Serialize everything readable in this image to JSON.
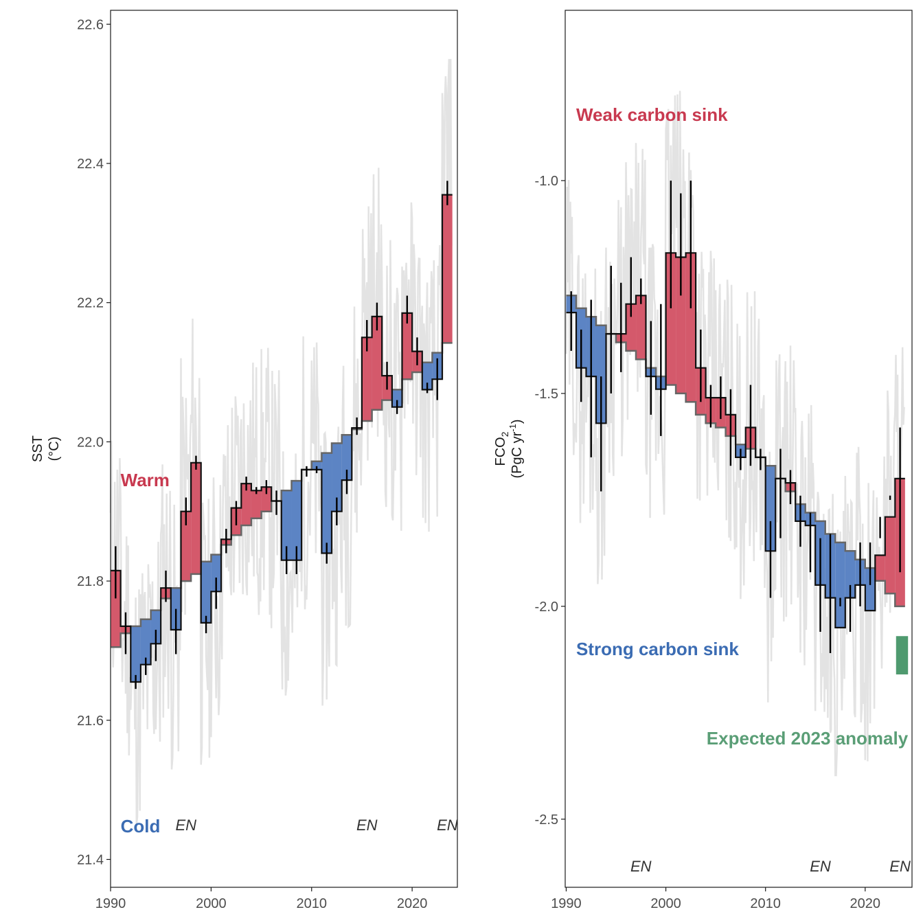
{
  "colors": {
    "warm": "#D4596B",
    "cold": "#5C84C4",
    "warm_text": "#C8394F",
    "cold_text": "#3B6CB3",
    "expected": "#4F9A6F",
    "expected_text": "#5A9E76",
    "background_line": "#E3E3E3",
    "trend_line": "#666666",
    "axis": "#1a1a1a"
  },
  "chart_data": [
    {
      "type": "area",
      "ylabel": "SST",
      "yunit": "(°C)",
      "xlim": [
        1990,
        2024.5
      ],
      "ylim": [
        21.36,
        22.62
      ],
      "xticks": [
        1990,
        2000,
        2010,
        2020
      ],
      "xtick_labels": [
        "1990",
        "2000",
        "2010",
        "2020"
      ],
      "yticks": [
        21.4,
        21.6,
        21.8,
        22.0,
        22.2,
        22.4,
        22.6
      ],
      "ytick_labels": [
        "21.4",
        "21.6",
        "21.8",
        "22.0",
        "22.2",
        "22.4",
        "22.6"
      ],
      "annotations": [
        {
          "text": "Warm",
          "role": "warm",
          "x": 1991,
          "y": 21.945
        },
        {
          "text": "Cold",
          "role": "cold",
          "x": 1991,
          "y": 21.448
        }
      ],
      "en_labels": [
        {
          "text": "EN",
          "x": 1997.5,
          "y": 21.45
        },
        {
          "text": "EN",
          "x": 2015.5,
          "y": 21.45
        },
        {
          "text": "EN",
          "x": 2023.5,
          "y": 21.45
        }
      ],
      "years": [
        1990,
        1991,
        1992,
        1993,
        1994,
        1995,
        1996,
        1997,
        1998,
        1999,
        2000,
        2001,
        2002,
        2003,
        2004,
        2005,
        2006,
        2007,
        2008,
        2009,
        2010,
        2011,
        2012,
        2013,
        2014,
        2015,
        2016,
        2017,
        2018,
        2019,
        2020,
        2021,
        2022,
        2023
      ],
      "trend": [
        21.705,
        21.725,
        21.735,
        21.745,
        21.758,
        21.775,
        21.79,
        21.8,
        21.81,
        21.828,
        21.838,
        21.852,
        21.866,
        21.88,
        21.89,
        21.9,
        21.915,
        21.93,
        21.944,
        21.96,
        21.972,
        21.984,
        21.998,
        22.01,
        22.018,
        22.03,
        22.046,
        22.06,
        22.075,
        22.09,
        22.1,
        22.114,
        22.128,
        22.142
      ],
      "values": [
        21.815,
        21.735,
        21.655,
        21.68,
        21.71,
        21.79,
        21.73,
        21.9,
        21.97,
        21.74,
        21.785,
        21.86,
        21.905,
        21.94,
        21.93,
        21.935,
        21.915,
        21.83,
        21.83,
        21.96,
        21.96,
        21.84,
        21.9,
        21.945,
        22.02,
        22.15,
        22.18,
        22.095,
        22.05,
        22.185,
        22.13,
        22.075,
        22.09,
        22.355
      ],
      "err_low": [
        21.775,
        21.695,
        21.645,
        21.665,
        21.685,
        21.77,
        21.695,
        21.88,
        21.96,
        21.725,
        21.76,
        21.84,
        21.88,
        21.93,
        21.925,
        21.925,
        21.895,
        21.81,
        21.81,
        21.95,
        21.955,
        21.825,
        21.88,
        21.925,
        22.01,
        22.13,
        22.16,
        22.075,
        22.04,
        22.17,
        22.11,
        22.07,
        22.06,
        22.34
      ],
      "err_high": [
        21.85,
        21.755,
        21.665,
        21.69,
        21.73,
        21.815,
        21.76,
        21.92,
        21.98,
        21.75,
        21.805,
        21.875,
        21.915,
        21.95,
        21.935,
        21.945,
        21.93,
        21.85,
        21.85,
        21.965,
        21.965,
        21.855,
        21.92,
        21.96,
        22.035,
        22.175,
        22.2,
        22.115,
        22.06,
        22.21,
        22.15,
        22.085,
        22.12,
        22.375
      ],
      "monthly_background": {
        "description_series": "grey monthly trace",
        "min": 21.42,
        "max": 22.55
      }
    },
    {
      "type": "area",
      "ylabel": "FCO",
      "ylabel_sub": "2",
      "yunit": "(PgC yr",
      "yunit_sup": "-1",
      "yunit_close": ")",
      "xlim": [
        1989.9,
        2024.7
      ],
      "ylim": [
        -2.66,
        -0.6
      ],
      "xticks": [
        1990,
        2000,
        2010,
        2020
      ],
      "xtick_labels": [
        "1990",
        "2000",
        "2010",
        "2020"
      ],
      "yticks": [
        -2.5,
        -2.0,
        -1.5,
        -1.0
      ],
      "ytick_labels": [
        "-2.5",
        "-2.0",
        "-1.5",
        "-1.0"
      ],
      "annotations": [
        {
          "text": "Weak carbon sink",
          "role": "warm",
          "x": 1991,
          "y": -0.845
        },
        {
          "text": "Strong carbon sink",
          "role": "cold",
          "x": 1991,
          "y": -2.1
        },
        {
          "text": "Expected 2023 anomaly",
          "role": "expected",
          "x": 2024.3,
          "y": -2.31
        }
      ],
      "en_labels": [
        {
          "text": "EN",
          "x": 1997.5,
          "y": -2.61
        },
        {
          "text": "EN",
          "x": 2015.5,
          "y": -2.61
        },
        {
          "text": "EN",
          "x": 2023.5,
          "y": -2.61
        }
      ],
      "years": [
        1990,
        1991,
        1992,
        1993,
        1994,
        1995,
        1996,
        1997,
        1998,
        1999,
        2000,
        2001,
        2002,
        2003,
        2004,
        2005,
        2006,
        2007,
        2008,
        2009,
        2010,
        2011,
        2012,
        2013,
        2014,
        2015,
        2016,
        2017,
        2018,
        2019,
        2020,
        2021,
        2022,
        2023
      ],
      "trend": [
        -1.27,
        -1.3,
        -1.32,
        -1.34,
        -1.36,
        -1.38,
        -1.4,
        -1.42,
        -1.44,
        -1.46,
        -1.48,
        -1.5,
        -1.52,
        -1.55,
        -1.57,
        -1.58,
        -1.6,
        -1.62,
        -1.63,
        -1.65,
        -1.67,
        -1.7,
        -1.73,
        -1.76,
        -1.78,
        -1.8,
        -1.83,
        -1.85,
        -1.87,
        -1.89,
        -1.91,
        -1.94,
        -1.97,
        -2.0
      ],
      "values": [
        -1.31,
        -1.44,
        -1.46,
        -1.57,
        -1.36,
        -1.36,
        -1.29,
        -1.27,
        -1.46,
        -1.49,
        -1.17,
        -1.18,
        -1.17,
        -1.44,
        -1.51,
        -1.51,
        -1.55,
        -1.65,
        -1.58,
        -1.65,
        -1.87,
        -1.7,
        -1.71,
        -1.8,
        -1.81,
        -1.95,
        -1.98,
        -2.05,
        -1.98,
        -1.95,
        -2.01,
        -1.88,
        -1.79,
        -1.7
      ],
      "err_low": [
        -1.4,
        -1.52,
        -1.65,
        -1.73,
        -1.5,
        -1.45,
        -1.32,
        -1.29,
        -1.55,
        -1.6,
        -1.3,
        -1.27,
        -1.3,
        -1.52,
        -1.58,
        -1.56,
        -1.67,
        -1.68,
        -1.67,
        -1.68,
        -1.98,
        -1.84,
        -1.76,
        -1.86,
        -1.92,
        -2.06,
        -2.11,
        -2.0,
        -2.06,
        -2.0,
        -1.85,
        -1.84,
        -1.74,
        -1.92
      ],
      "err_high": [
        -1.26,
        -1.35,
        -1.28,
        -1.46,
        -1.2,
        -1.24,
        -1.18,
        -1.23,
        -1.33,
        -1.29,
        -1.0,
        -1.03,
        -1.0,
        -1.35,
        -1.48,
        -1.46,
        -1.49,
        -1.63,
        -1.48,
        -1.63,
        -1.8,
        -1.63,
        -1.68,
        -1.74,
        -1.78,
        -1.84,
        -1.83,
        -1.98,
        -1.95,
        -1.85,
        -1.95,
        -1.79,
        -1.75,
        -1.58
      ],
      "expected_2023": {
        "low": -2.16,
        "high": -2.07
      },
      "monthly_background": {
        "description_series": "grey monthly trace",
        "min": -2.57,
        "max": -0.7
      }
    }
  ]
}
